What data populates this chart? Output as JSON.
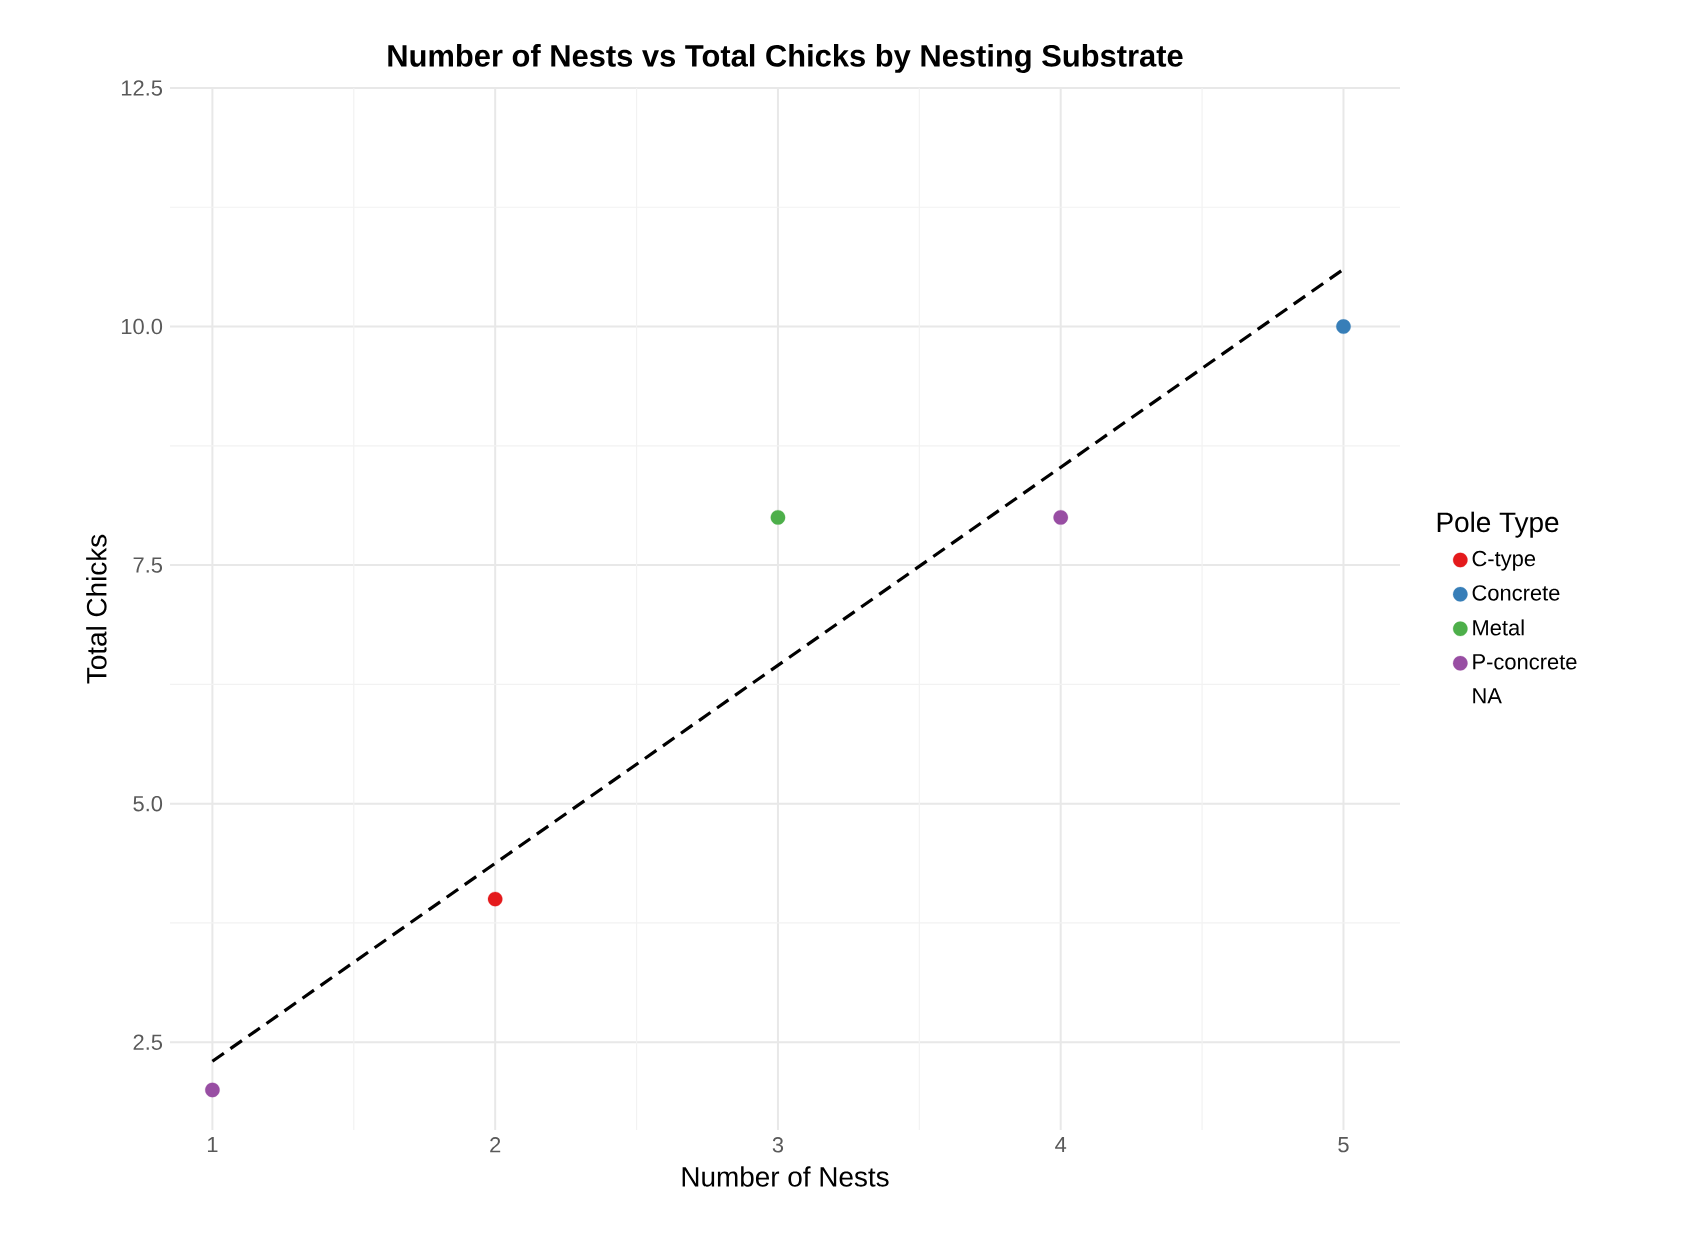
{
  "chart_data": {
    "type": "scatter",
    "title": "Number of Nests vs Total Chicks by Nesting Substrate",
    "xlabel": "Number of Nests",
    "ylabel": "Total Chicks",
    "legend_title": "Pole Type",
    "legend": "right",
    "grid": true,
    "marker": "circle",
    "xlim": [
      0.85,
      5.2
    ],
    "ylim": [
      1.58,
      12.5
    ],
    "xticks": [
      1,
      2,
      3,
      4,
      5
    ],
    "yticks": [
      {
        "value": 2.5,
        "label": "2.5"
      },
      {
        "value": 5,
        "label": "5.0"
      },
      {
        "value": 7.5,
        "label": "7.5"
      },
      {
        "value": 10,
        "label": "10.0"
      },
      {
        "value": 12.5,
        "label": "12.5"
      }
    ],
    "series": [
      {
        "name": "C-type",
        "color": "#e41a1c",
        "x": [
          2
        ],
        "values": [
          4
        ]
      },
      {
        "name": "Concrete",
        "color": "#377eb8",
        "x": [
          5
        ],
        "values": [
          10
        ]
      },
      {
        "name": "Metal",
        "color": "#4daf4a",
        "x": [
          3
        ],
        "values": [
          8
        ]
      },
      {
        "name": "P-concrete",
        "color": "#984ea3",
        "x": [
          1,
          4
        ],
        "values": [
          2,
          8
        ]
      },
      {
        "name": "NA"
      },
      {
        "type": "line",
        "color": "#000000",
        "line_style": "dashed",
        "marker": "none",
        "x": [
          1,
          5
        ],
        "values": [
          2.3,
          10.6
        ]
      }
    ]
  }
}
